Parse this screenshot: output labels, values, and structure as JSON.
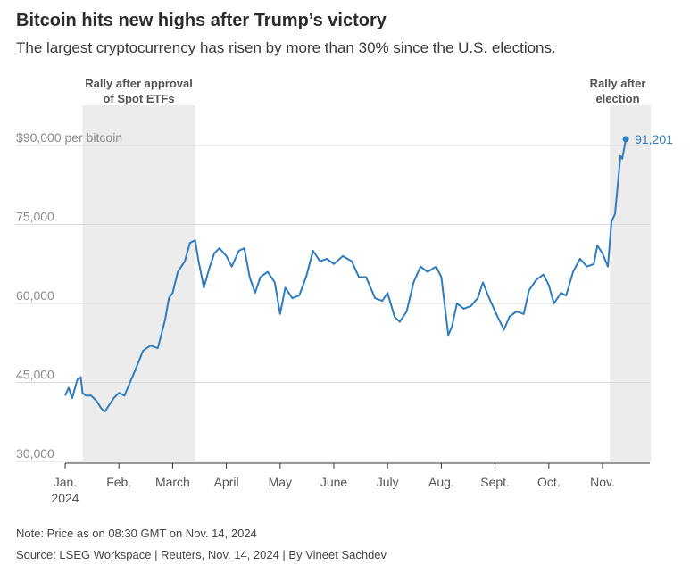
{
  "title": "Bitcoin hits new highs after Trump’s victory",
  "subtitle": "The largest cryptocurrency has risen by more than 30% since the U.S. elections.",
  "note": "Note: Price as on 08:30 GMT on Nov. 14, 2024",
  "source": "Source: LSEG Workspace | Reuters, Nov. 14, 2024 | By Vineet Sachdev",
  "colors": {
    "line": "#2f7cbf",
    "shade": "#ececec",
    "grid": "#d8d8d8",
    "axis": "#333333"
  },
  "chart_data": {
    "type": "line",
    "title": "Bitcoin hits new highs after Trump’s victory",
    "ylabel": "per bitcoin",
    "ylim": [
      30000,
      90000
    ],
    "yticks": [
      {
        "value": 30000,
        "label": "30,000"
      },
      {
        "value": 45000,
        "label": "45,000"
      },
      {
        "value": 60000,
        "label": "60,000"
      },
      {
        "value": 75000,
        "label": "75,000"
      },
      {
        "value": 90000,
        "label": "$90,000",
        "suffix": " per bitcoin"
      }
    ],
    "xticks": [
      {
        "month": 0,
        "label": "Jan.",
        "sublabel": "2024"
      },
      {
        "month": 1,
        "label": "Feb."
      },
      {
        "month": 2,
        "label": "March"
      },
      {
        "month": 3,
        "label": "April"
      },
      {
        "month": 4,
        "label": "May"
      },
      {
        "month": 5,
        "label": "June"
      },
      {
        "month": 6,
        "label": "July"
      },
      {
        "month": 7,
        "label": "Aug."
      },
      {
        "month": 8,
        "label": "Sept."
      },
      {
        "month": 9,
        "label": "Oct."
      },
      {
        "month": 10,
        "label": "Nov."
      }
    ],
    "shaded_periods": [
      {
        "start": "2024-01-11",
        "end": "2024-03-14",
        "label_lines": [
          "Rally after approval",
          "of Spot ETFs"
        ]
      },
      {
        "start": "2024-11-05",
        "end": "2024-11-28",
        "label_lines": [
          "Rally after",
          "election"
        ]
      }
    ],
    "end_label": "91,201",
    "series": [
      {
        "x": [
          "2024-01-01",
          "2024-01-03",
          "2024-01-05",
          "2024-01-08",
          "2024-01-10",
          "2024-01-11",
          "2024-01-13",
          "2024-01-16",
          "2024-01-19",
          "2024-01-22",
          "2024-01-24",
          "2024-01-26",
          "2024-01-29",
          "2024-02-01",
          "2024-02-04",
          "2024-02-07",
          "2024-02-10",
          "2024-02-14",
          "2024-02-18",
          "2024-02-22",
          "2024-02-26",
          "2024-02-28",
          "2024-03-01",
          "2024-03-04",
          "2024-03-06",
          "2024-03-08",
          "2024-03-11",
          "2024-03-14",
          "2024-03-16",
          "2024-03-19",
          "2024-03-22",
          "2024-03-25",
          "2024-03-28",
          "2024-04-01",
          "2024-04-04",
          "2024-04-08",
          "2024-04-11",
          "2024-04-14",
          "2024-04-17",
          "2024-04-20",
          "2024-04-24",
          "2024-04-28",
          "2024-05-01",
          "2024-05-04",
          "2024-05-08",
          "2024-05-12",
          "2024-05-16",
          "2024-05-20",
          "2024-05-24",
          "2024-05-28",
          "2024-06-01",
          "2024-06-06",
          "2024-06-11",
          "2024-06-15",
          "2024-06-19",
          "2024-06-24",
          "2024-06-28",
          "2024-07-01",
          "2024-07-05",
          "2024-07-08",
          "2024-07-12",
          "2024-07-16",
          "2024-07-20",
          "2024-07-24",
          "2024-07-29",
          "2024-08-01",
          "2024-08-05",
          "2024-08-07",
          "2024-08-10",
          "2024-08-14",
          "2024-08-18",
          "2024-08-22",
          "2024-08-25",
          "2024-08-28",
          "2024-09-01",
          "2024-09-06",
          "2024-09-09",
          "2024-09-13",
          "2024-09-17",
          "2024-09-20",
          "2024-09-24",
          "2024-09-28",
          "2024-10-01",
          "2024-10-04",
          "2024-10-08",
          "2024-10-11",
          "2024-10-15",
          "2024-10-19",
          "2024-10-23",
          "2024-10-27",
          "2024-10-29",
          "2024-11-01",
          "2024-11-04",
          "2024-11-06",
          "2024-11-08",
          "2024-11-11",
          "2024-11-12",
          "2024-11-14"
        ],
        "values": [
          42500,
          44000,
          42000,
          45500,
          46000,
          43000,
          42500,
          42500,
          41500,
          40000,
          39500,
          40500,
          42000,
          43000,
          42500,
          45000,
          47500,
          51000,
          52000,
          51500,
          57000,
          61000,
          62000,
          66000,
          67000,
          68000,
          71500,
          72000,
          68000,
          63000,
          66500,
          69500,
          70500,
          69000,
          67000,
          70000,
          70500,
          65000,
          62000,
          65000,
          66000,
          64000,
          58000,
          63000,
          61000,
          61500,
          65000,
          70000,
          68000,
          68500,
          67500,
          69000,
          68000,
          65000,
          65000,
          61000,
          60500,
          62000,
          57500,
          56500,
          58500,
          64000,
          67000,
          66000,
          67000,
          65000,
          54000,
          55500,
          60000,
          59000,
          59500,
          61000,
          64000,
          61500,
          58500,
          55000,
          57500,
          58500,
          58000,
          62500,
          64500,
          65500,
          63500,
          60000,
          62000,
          61500,
          66000,
          68500,
          67000,
          67500,
          71000,
          69500,
          67000,
          75500,
          77000,
          88000,
          87500,
          91201
        ]
      }
    ]
  }
}
